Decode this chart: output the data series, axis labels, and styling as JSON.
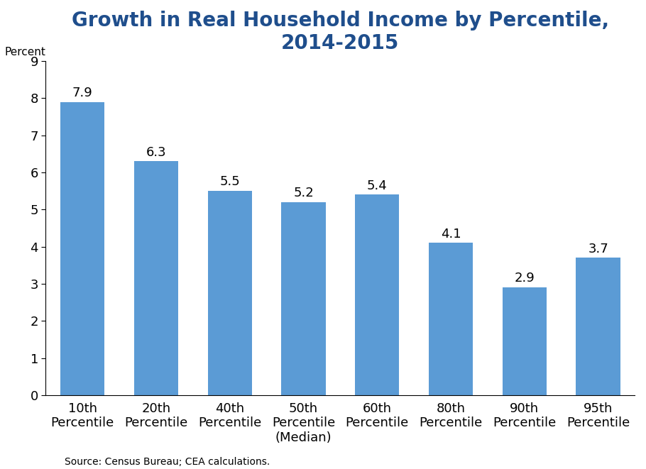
{
  "title": "Growth in Real Household Income by Percentile,\n2014-2015",
  "title_color": "#1F4E8C",
  "ylabel": "Percent",
  "categories": [
    "10th\nPercentile",
    "20th\nPercentile",
    "40th\nPercentile",
    "50th\nPercentile\n(Median)",
    "60th\nPercentile",
    "80th\nPercentile",
    "90th\nPercentile",
    "95th\nPercentile"
  ],
  "values": [
    7.9,
    6.3,
    5.5,
    5.2,
    5.4,
    4.1,
    2.9,
    3.7
  ],
  "bar_color": "#5B9BD5",
  "ylim": [
    0,
    9
  ],
  "yticks": [
    0,
    1,
    2,
    3,
    4,
    5,
    6,
    7,
    8,
    9
  ],
  "title_fontsize": 20,
  "tick_fontsize": 13,
  "value_fontsize": 13,
  "source_text": "Source: Census Bureau; CEA calculations.",
  "source_fontsize": 10,
  "background_color": "#FFFFFF"
}
